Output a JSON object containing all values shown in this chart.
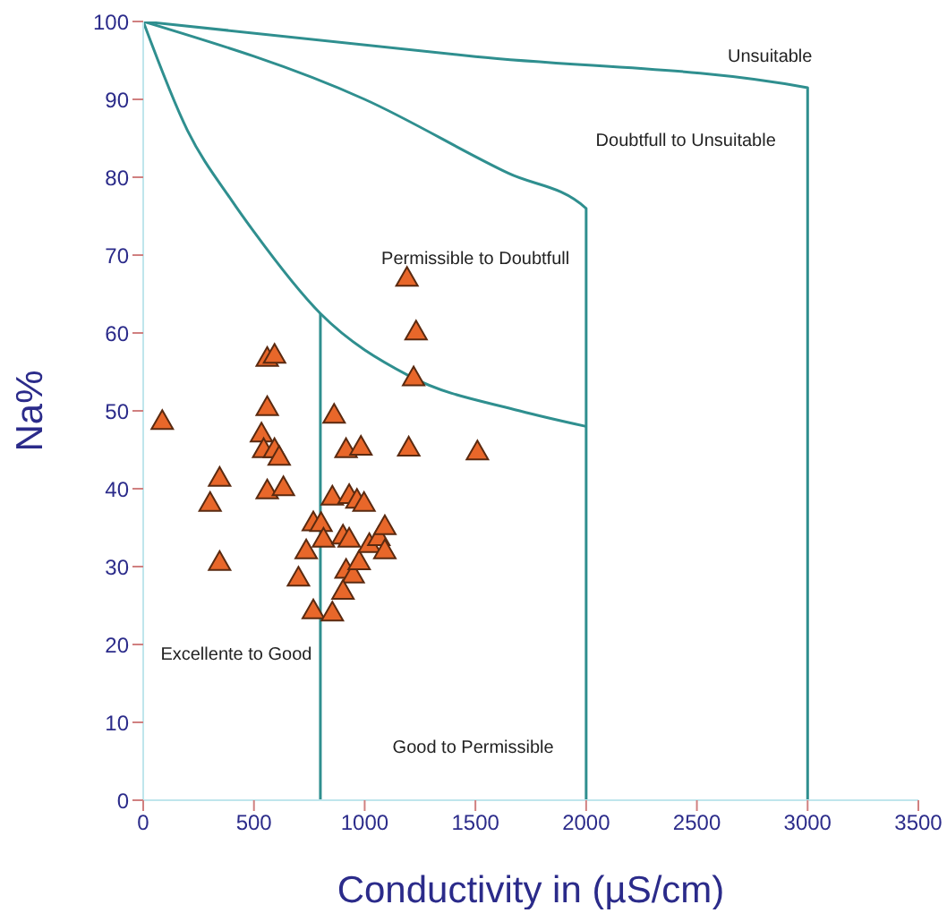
{
  "chart_data": {
    "type": "scatter",
    "xlabel": "Conductivity in (µS/cm)",
    "ylabel": "Na%",
    "xlim": [
      0,
      3500
    ],
    "ylim": [
      0,
      100
    ],
    "xticks": [
      0,
      500,
      1000,
      1500,
      2000,
      2500,
      3000,
      3500
    ],
    "yticks": [
      0,
      10,
      20,
      30,
      40,
      50,
      60,
      70,
      80,
      90,
      100
    ],
    "grid": false,
    "marker": "triangle",
    "series": [
      {
        "type": "line",
        "color": "#2f8f8f",
        "marker": "none",
        "x": [
          0,
          200,
          400,
          500,
          800,
          1200,
          1700,
          2000
        ],
        "values": [
          100,
          86,
          77,
          73,
          62.5,
          54.5,
          50,
          48
        ]
      },
      {
        "type": "line",
        "color": "#2f8f8f",
        "marker": "none",
        "x": [
          0,
          1000,
          1650,
          2000,
          2000
        ],
        "values": [
          100,
          90,
          80.5,
          76,
          0
        ]
      },
      {
        "type": "line",
        "color": "#2f8f8f",
        "marker": "none",
        "x": [
          0,
          1500,
          3000,
          3000
        ],
        "values": [
          100,
          95.5,
          91.5,
          0
        ]
      },
      {
        "type": "line",
        "color": "#2f8f8f",
        "marker": "none",
        "x": [
          800,
          800
        ],
        "values": [
          0,
          62.5
        ]
      },
      {
        "color": "#e8672a",
        "x": [
          86,
          302,
          345,
          345,
          560,
          593,
          560,
          534,
          544,
          593,
          614,
          560,
          633,
          701,
          736,
          768,
          803,
          814,
          768,
          854,
          854,
          862,
          916,
          983,
          902,
          930,
          930,
          965,
          997,
          916,
          948,
          975,
          902,
          1021,
          1064,
          1091,
          1091,
          1191,
          1232,
          1221,
          1199,
          1509
        ],
        "values": [
          48.7,
          38.2,
          41.4,
          30.6,
          56.8,
          57.2,
          50.5,
          47.1,
          45.1,
          45.1,
          44.1,
          39.8,
          40.2,
          28.6,
          32.1,
          35.7,
          35.6,
          33.6,
          24.4,
          24.1,
          39.0,
          49.5,
          45.1,
          45.4,
          34.0,
          33.6,
          39.2,
          38.6,
          38.2,
          29.6,
          29.0,
          30.7,
          26.9,
          32.9,
          33.8,
          35.2,
          32.1,
          67.1,
          60.2,
          54.3,
          45.3,
          44.8
        ]
      }
    ],
    "annotations": [
      "Unsuitable",
      "Doubtfull to Unsuitable",
      "Permissible to Doubtfull",
      "Excellente to Good",
      "Good to Permissible"
    ]
  }
}
